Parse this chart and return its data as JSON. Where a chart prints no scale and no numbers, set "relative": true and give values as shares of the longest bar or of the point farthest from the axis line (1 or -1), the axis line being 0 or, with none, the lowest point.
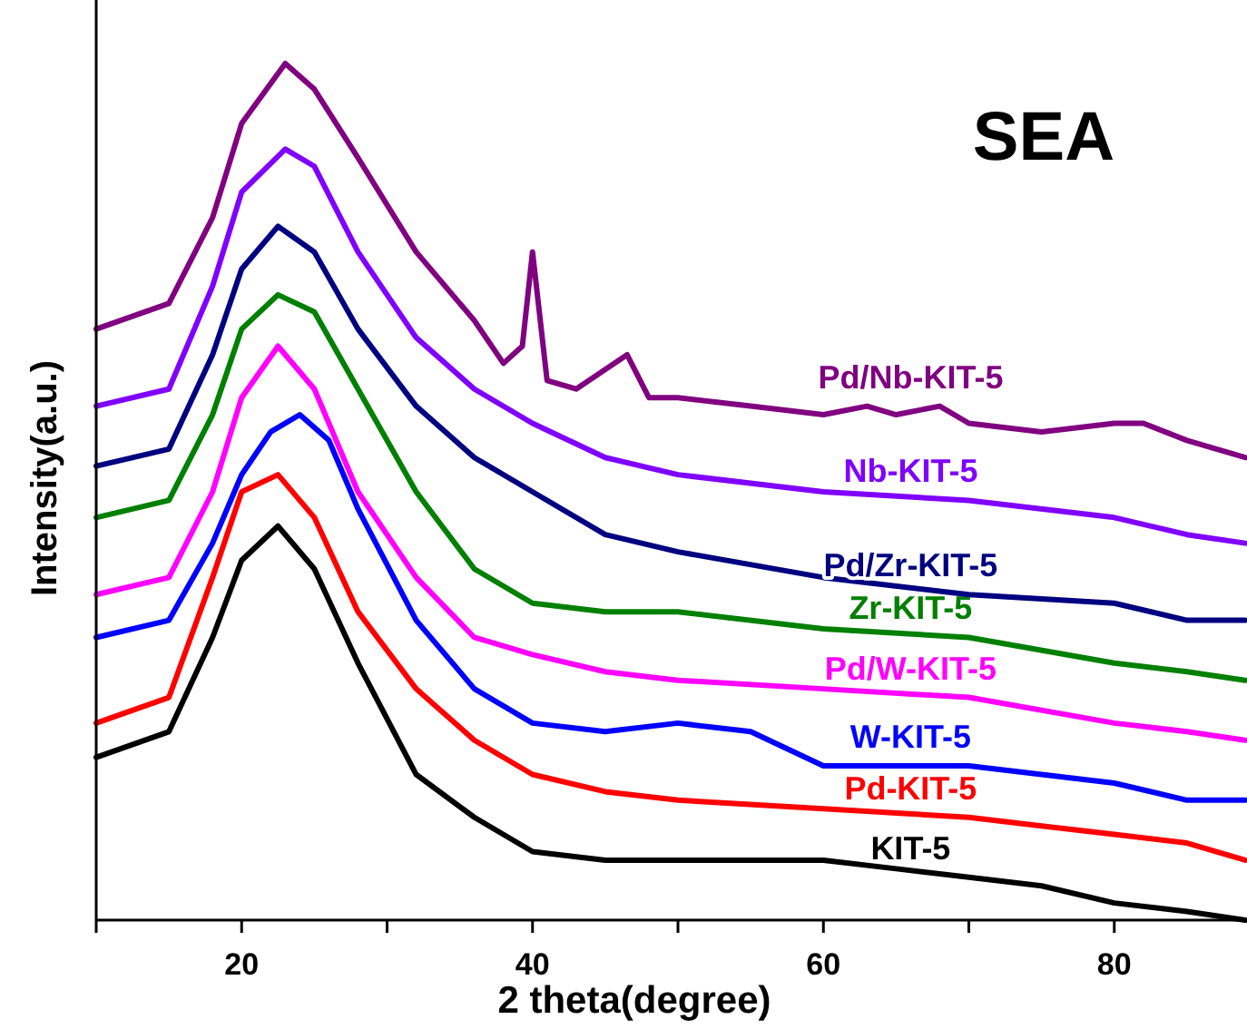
{
  "chart_data": {
    "type": "line",
    "relative": true,
    "xlabel": "2 theta(degree)",
    "ylabel": "Intensity(a.u.)",
    "annotations": [
      "SEA"
    ],
    "xlim": [
      10,
      89
    ],
    "xticks": [
      {
        "value": 10,
        "label": null
      },
      20,
      {
        "value": 30,
        "label": null
      },
      40,
      {
        "value": 50,
        "label": null
      },
      60,
      {
        "value": 70,
        "label": null
      },
      80
    ],
    "legend": false,
    "grid": false,
    "marker": "none",
    "line_style": "solid",
    "series": [
      {
        "name": "KIT-5",
        "color": "#000000",
        "x": [
          10,
          15,
          18,
          20,
          22.5,
          25,
          28,
          32,
          36,
          40,
          45,
          50,
          55,
          60,
          65,
          70,
          75,
          80,
          85,
          89
        ],
        "values": [
          0.19,
          0.22,
          0.33,
          0.42,
          0.46,
          0.41,
          0.3,
          0.17,
          0.12,
          0.08,
          0.07,
          0.07,
          0.07,
          0.07,
          0.06,
          0.05,
          0.04,
          0.02,
          0.01,
          0.0
        ]
      },
      {
        "name": "Pd-KIT-5",
        "color": "#ff0000",
        "x": [
          10,
          15,
          18,
          20,
          22.5,
          25,
          28,
          32,
          36,
          40,
          45,
          50,
          60,
          70,
          75,
          80,
          85,
          89
        ],
        "values": [
          0.23,
          0.26,
          0.4,
          0.5,
          0.52,
          0.47,
          0.36,
          0.27,
          0.21,
          0.17,
          0.15,
          0.14,
          0.13,
          0.12,
          0.11,
          0.1,
          0.09,
          0.07
        ]
      },
      {
        "name": "W-KIT-5",
        "color": "#0000ff",
        "x": [
          10,
          15,
          18,
          20,
          22,
          24,
          26,
          28,
          32,
          36,
          40,
          45,
          50,
          55,
          60,
          65,
          70,
          75,
          80,
          85,
          89
        ],
        "values": [
          0.33,
          0.35,
          0.44,
          0.52,
          0.57,
          0.59,
          0.56,
          0.48,
          0.35,
          0.27,
          0.23,
          0.22,
          0.23,
          0.22,
          0.18,
          0.18,
          0.18,
          0.17,
          0.16,
          0.14,
          0.14
        ]
      },
      {
        "name": "Pd/W-KIT-5",
        "color": "#ff00ff",
        "x": [
          10,
          15,
          18,
          20,
          22.5,
          25,
          28,
          32,
          36,
          40,
          45,
          50,
          60,
          70,
          80,
          85,
          89
        ],
        "values": [
          0.38,
          0.4,
          0.5,
          0.61,
          0.67,
          0.62,
          0.5,
          0.4,
          0.33,
          0.31,
          0.29,
          0.28,
          0.27,
          0.26,
          0.23,
          0.22,
          0.21
        ]
      },
      {
        "name": "Zr-KIT-5",
        "color": "#008000",
        "x": [
          10,
          15,
          18,
          20,
          22.5,
          25,
          28,
          32,
          36,
          40,
          45,
          50,
          60,
          70,
          80,
          85,
          89
        ],
        "values": [
          0.47,
          0.49,
          0.59,
          0.69,
          0.73,
          0.71,
          0.62,
          0.5,
          0.41,
          0.37,
          0.36,
          0.36,
          0.34,
          0.33,
          0.3,
          0.29,
          0.28
        ]
      },
      {
        "name": "Pd/Zr-KIT-5",
        "color": "#000080",
        "x": [
          10,
          15,
          18,
          20,
          22.5,
          25,
          28,
          32,
          36,
          40,
          45,
          50,
          60,
          70,
          80,
          85,
          89
        ],
        "values": [
          0.53,
          0.55,
          0.66,
          0.76,
          0.81,
          0.78,
          0.69,
          0.6,
          0.54,
          0.5,
          0.45,
          0.43,
          0.4,
          0.38,
          0.37,
          0.35,
          0.35
        ]
      },
      {
        "name": "Nb-KIT-5",
        "color": "#8000ff",
        "x": [
          10,
          15,
          18,
          20,
          23,
          25,
          28,
          32,
          36,
          40,
          45,
          50,
          60,
          70,
          80,
          85,
          89
        ],
        "values": [
          0.6,
          0.62,
          0.74,
          0.85,
          0.9,
          0.88,
          0.78,
          0.68,
          0.62,
          0.58,
          0.54,
          0.52,
          0.5,
          0.49,
          0.47,
          0.45,
          0.44
        ]
      },
      {
        "name": "Pd/Nb-KIT-5",
        "color": "#800080",
        "x": [
          10,
          15,
          18,
          20,
          23,
          25,
          28,
          32,
          36,
          38,
          39.3,
          40,
          41,
          43,
          46.5,
          48,
          50,
          55,
          60,
          63,
          65,
          68,
          70,
          75,
          80,
          82,
          85,
          89
        ],
        "values": [
          0.69,
          0.72,
          0.82,
          0.93,
          1,
          0.97,
          0.89,
          0.78,
          0.7,
          0.65,
          0.67,
          0.78,
          0.63,
          0.62,
          0.66,
          0.61,
          0.61,
          0.6,
          0.59,
          0.6,
          0.59,
          0.6,
          0.58,
          0.57,
          0.58,
          0.58,
          0.56,
          0.54
        ]
      }
    ]
  }
}
